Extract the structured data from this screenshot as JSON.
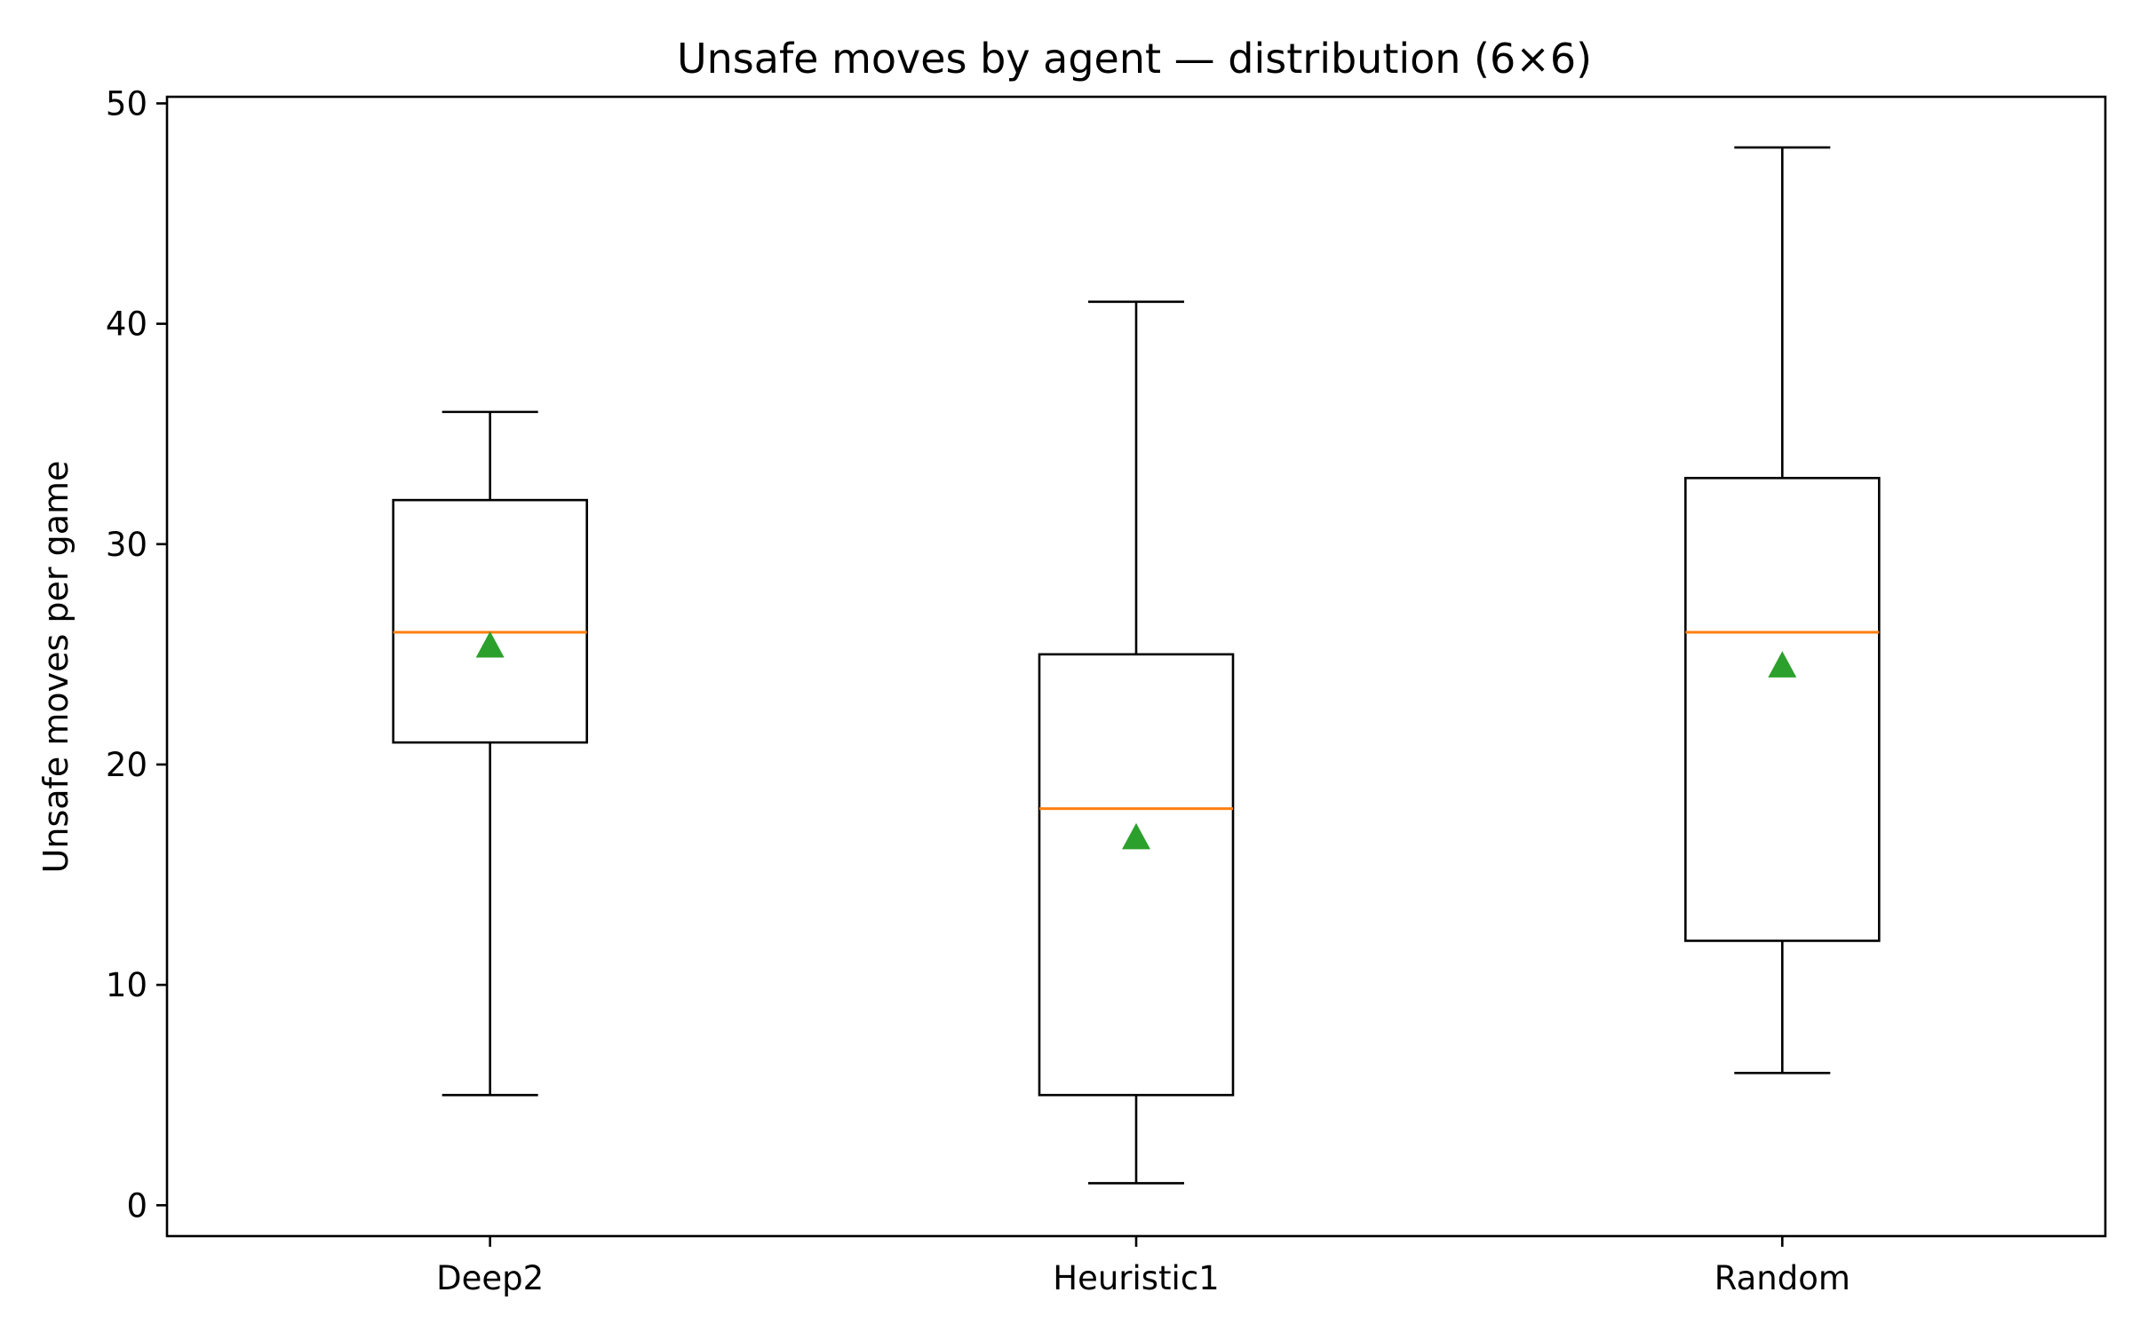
{
  "chart_data": {
    "type": "boxplot",
    "title": "Unsafe moves by agent — distribution (6×6)",
    "xlabel": "",
    "ylabel": "Unsafe moves per game",
    "ylim": [
      -1.4,
      50.3
    ],
    "yticks": [
      0,
      10,
      20,
      30,
      40,
      50
    ],
    "grid": false,
    "categories": [
      "Deep2",
      "Heuristic1",
      "Random"
    ],
    "boxes": [
      {
        "category": "Deep2",
        "whisker_low": 5,
        "q1": 21,
        "median": 26,
        "q3": 32,
        "whisker_high": 36,
        "mean": 25.4
      },
      {
        "category": "Heuristic1",
        "whisker_low": 1,
        "q1": 5,
        "median": 18,
        "q3": 25,
        "whisker_high": 41,
        "mean": 16.7
      },
      {
        "category": "Random",
        "whisker_low": 6,
        "q1": 12,
        "median": 26,
        "q3": 33,
        "whisker_high": 48,
        "mean": 24.5
      }
    ],
    "colors": {
      "box": "#000000",
      "median": "#ff7f0e",
      "mean": "#2ca02c"
    }
  }
}
